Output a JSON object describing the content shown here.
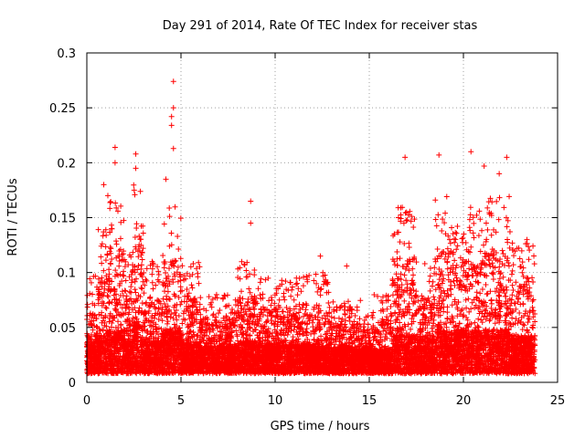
{
  "chart_data": {
    "type": "scatter",
    "title": "Day 291 of 2014, Rate Of TEC Index for receiver stas",
    "xlabel": "GPS time / hours",
    "ylabel": "ROTI / TECUs",
    "xlim": [
      0,
      25
    ],
    "ylim": [
      0,
      0.3
    ],
    "x_ticks": [
      0,
      5,
      10,
      15,
      20,
      25
    ],
    "y_ticks": [
      0,
      0.05,
      0.1,
      0.15,
      0.2,
      0.25,
      0.3
    ],
    "x_tick_labels": [
      "0",
      "5",
      "10",
      "15",
      "20",
      "25"
    ],
    "y_tick_labels": [
      "0",
      "0.05",
      "0.1",
      "0.15",
      "0.2",
      "0.25",
      "0.3"
    ],
    "grid": true,
    "marker": "+",
    "series_color": "#ff0000",
    "x_data_range": [
      0,
      23.8
    ],
    "notable_points": [
      {
        "x": 4.6,
        "y": 0.274
      },
      {
        "x": 4.6,
        "y": 0.25
      },
      {
        "x": 4.5,
        "y": 0.242
      },
      {
        "x": 4.5,
        "y": 0.234
      },
      {
        "x": 1.5,
        "y": 0.214
      },
      {
        "x": 4.6,
        "y": 0.213
      },
      {
        "x": 20.4,
        "y": 0.21
      },
      {
        "x": 2.6,
        "y": 0.208
      },
      {
        "x": 18.7,
        "y": 0.207
      },
      {
        "x": 16.9,
        "y": 0.205
      },
      {
        "x": 22.3,
        "y": 0.205
      },
      {
        "x": 1.5,
        "y": 0.2
      },
      {
        "x": 21.1,
        "y": 0.197
      },
      {
        "x": 2.6,
        "y": 0.195
      },
      {
        "x": 21.9,
        "y": 0.19
      },
      {
        "x": 4.2,
        "y": 0.185
      },
      {
        "x": 0.9,
        "y": 0.18
      },
      {
        "x": 8.7,
        "y": 0.165
      },
      {
        "x": 8.7,
        "y": 0.145
      },
      {
        "x": 13.8,
        "y": 0.106
      },
      {
        "x": 12.4,
        "y": 0.115
      }
    ],
    "density_profile": [
      {
        "x_start": 0.0,
        "x_end": 0.5,
        "max": 0.09,
        "base": 0.028
      },
      {
        "x_start": 0.5,
        "x_end": 1.0,
        "max": 0.13,
        "base": 0.035
      },
      {
        "x_start": 1.0,
        "x_end": 2.0,
        "max": 0.16,
        "base": 0.04
      },
      {
        "x_start": 2.0,
        "x_end": 2.4,
        "max": 0.11,
        "base": 0.03
      },
      {
        "x_start": 2.4,
        "x_end": 3.0,
        "max": 0.17,
        "base": 0.045
      },
      {
        "x_start": 3.0,
        "x_end": 4.0,
        "max": 0.1,
        "base": 0.03
      },
      {
        "x_start": 4.0,
        "x_end": 5.0,
        "max": 0.15,
        "base": 0.04
      },
      {
        "x_start": 5.0,
        "x_end": 6.0,
        "max": 0.1,
        "base": 0.028
      },
      {
        "x_start": 6.0,
        "x_end": 8.0,
        "max": 0.07,
        "base": 0.025
      },
      {
        "x_start": 8.0,
        "x_end": 9.0,
        "max": 0.1,
        "base": 0.03
      },
      {
        "x_start": 9.0,
        "x_end": 11.0,
        "max": 0.085,
        "base": 0.027
      },
      {
        "x_start": 11.0,
        "x_end": 13.0,
        "max": 0.09,
        "base": 0.027
      },
      {
        "x_start": 13.0,
        "x_end": 15.0,
        "max": 0.065,
        "base": 0.024
      },
      {
        "x_start": 15.0,
        "x_end": 16.2,
        "max": 0.07,
        "base": 0.022
      },
      {
        "x_start": 16.2,
        "x_end": 17.5,
        "max": 0.15,
        "base": 0.035
      },
      {
        "x_start": 17.5,
        "x_end": 18.5,
        "max": 0.1,
        "base": 0.032
      },
      {
        "x_start": 18.5,
        "x_end": 19.5,
        "max": 0.16,
        "base": 0.038
      },
      {
        "x_start": 19.5,
        "x_end": 21.0,
        "max": 0.15,
        "base": 0.04
      },
      {
        "x_start": 21.0,
        "x_end": 22.5,
        "max": 0.16,
        "base": 0.04
      },
      {
        "x_start": 22.5,
        "x_end": 23.8,
        "max": 0.12,
        "base": 0.035
      }
    ]
  }
}
